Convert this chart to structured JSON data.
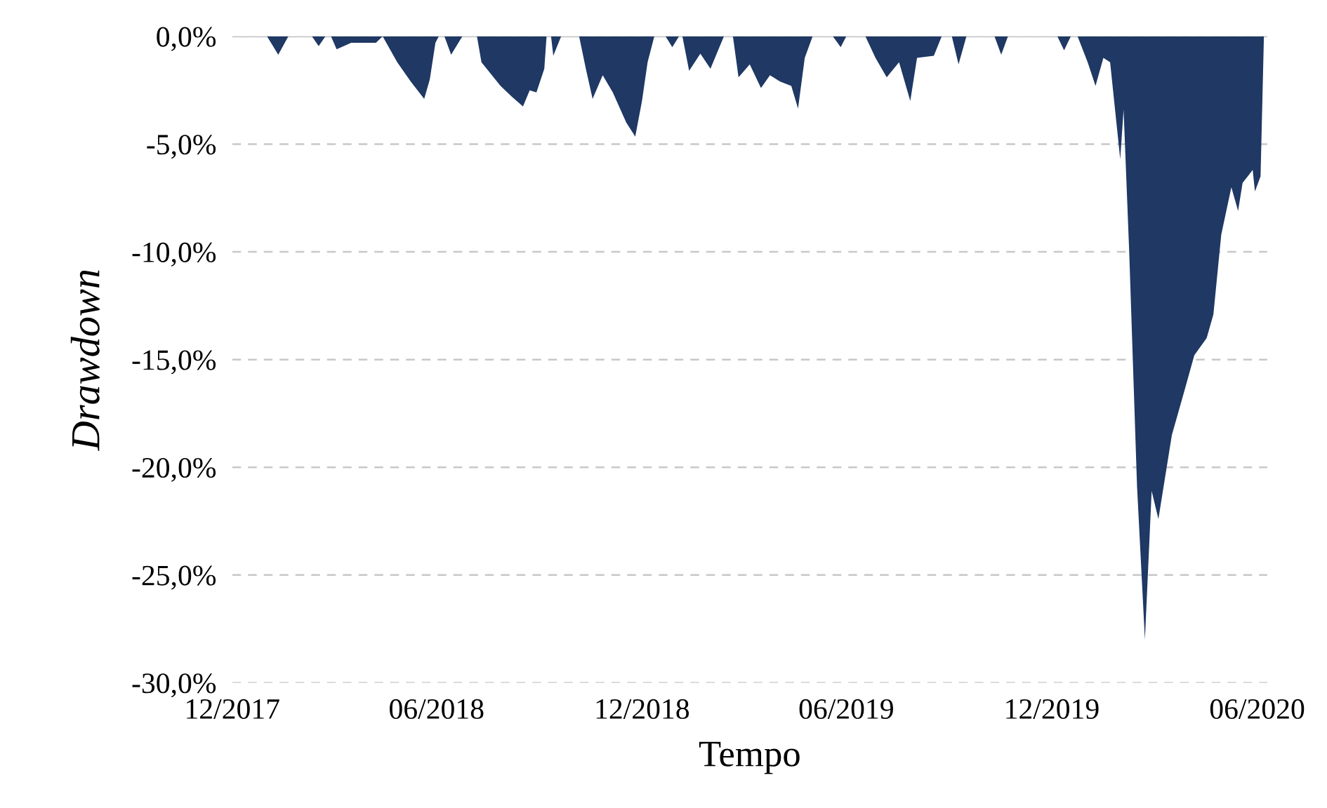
{
  "chart_data": {
    "type": "area",
    "xlabel": "Tempo",
    "ylabel": "Drawdown",
    "x": [
      "2017-12-01",
      "2018-01-01",
      "2018-01-11",
      "2018-01-20",
      "2018-02-10",
      "2018-02-16",
      "2018-02-22",
      "2018-02-27",
      "2018-03-04",
      "2018-03-17",
      "2018-04-08",
      "2018-04-14",
      "2018-04-27",
      "2018-05-09",
      "2018-05-21",
      "2018-05-26",
      "2018-05-31",
      "2018-06-03",
      "2018-06-08",
      "2018-06-14",
      "2018-06-24",
      "2018-07-07",
      "2018-07-11",
      "2018-07-28",
      "2018-08-07",
      "2018-08-17",
      "2018-08-23",
      "2018-08-29",
      "2018-09-05",
      "2018-09-07",
      "2018-09-11",
      "2018-09-13",
      "2018-09-20",
      "2018-10-06",
      "2018-10-12",
      "2018-10-18",
      "2018-10-27",
      "2018-11-05",
      "2018-11-17",
      "2018-11-25",
      "2018-12-01",
      "2018-12-06",
      "2018-12-12",
      "2018-12-22",
      "2018-12-28",
      "2019-01-03",
      "2019-01-06",
      "2019-01-12",
      "2019-01-22",
      "2019-01-31",
      "2019-02-12",
      "2019-02-20",
      "2019-02-25",
      "2019-03-07",
      "2019-03-17",
      "2019-03-25",
      "2019-04-03",
      "2019-04-13",
      "2019-04-19",
      "2019-04-25",
      "2019-05-02",
      "2019-05-20",
      "2019-05-27",
      "2019-06-01",
      "2019-06-18",
      "2019-06-27",
      "2019-07-07",
      "2019-07-18",
      "2019-07-28",
      "2019-08-03",
      "2019-08-18",
      "2019-08-25",
      "2019-09-03",
      "2019-09-09",
      "2019-09-16",
      "2019-10-11",
      "2019-10-17",
      "2019-10-23",
      "2019-12-06",
      "2019-12-12",
      "2019-12-18",
      "2019-12-24",
      "2020-01-02",
      "2020-01-09",
      "2020-01-16",
      "2020-01-22",
      "2020-01-31",
      "2020-02-03",
      "2020-02-08",
      "2020-02-15",
      "2020-02-22",
      "2020-02-28",
      "2020-03-05",
      "2020-03-17",
      "2020-03-29",
      "2020-04-06",
      "2020-04-17",
      "2020-04-23",
      "2020-04-30",
      "2020-05-09",
      "2020-05-15",
      "2020-05-19",
      "2020-05-28",
      "2020-05-30",
      "2020-06-04",
      "2020-06-07"
    ],
    "series": [
      {
        "color": "#1f3864",
        "values": [
          0,
          0,
          -0.85,
          0,
          0,
          -0.45,
          0,
          0,
          -0.6,
          -0.3,
          -0.3,
          0,
          -1.2,
          -2.1,
          -2.9,
          -2.0,
          -0.3,
          0,
          0,
          -0.85,
          0,
          0,
          -1.2,
          -2.3,
          -2.8,
          -3.25,
          -2.5,
          -2.6,
          -1.5,
          0,
          0,
          -0.9,
          0,
          0,
          -1.5,
          -2.9,
          -1.8,
          -2.6,
          -4.0,
          -4.65,
          -3.0,
          -1.2,
          0,
          0,
          -0.5,
          0,
          0,
          -1.6,
          -0.8,
          -1.5,
          0,
          0,
          -1.9,
          -1.3,
          -2.4,
          -1.8,
          -2.1,
          -2.3,
          -3.35,
          -1.0,
          0,
          0,
          -0.5,
          0,
          0,
          -1.0,
          -1.9,
          -1.2,
          -3.0,
          -1.0,
          -0.9,
          0,
          0,
          -1.3,
          0,
          0,
          -0.85,
          0,
          0,
          -0.65,
          0,
          0,
          -1.2,
          -2.3,
          -1.0,
          -1.2,
          -5.7,
          -3.4,
          -10,
          -20.9,
          -28.0,
          -21.1,
          -22.4,
          -18.5,
          -16.3,
          -14.8,
          -14.0,
          -12.9,
          -9.2,
          -7.0,
          -8.1,
          -6.8,
          -6.2,
          -7.2,
          -6.5,
          0
        ]
      }
    ],
    "xlim": [
      "2017-12-01",
      "2020-06-10"
    ],
    "xticks": [
      {
        "value": "2017-12-01",
        "label": "12/2017"
      },
      {
        "value": "2018-06-01",
        "label": "06/2018"
      },
      {
        "value": "2018-12-01",
        "label": "12/2018"
      },
      {
        "value": "2019-06-01",
        "label": "06/2019"
      },
      {
        "value": "2019-12-01",
        "label": "12/2019"
      },
      {
        "value": "2020-06-01",
        "label": "06/2020"
      }
    ],
    "ylim": [
      -30,
      0
    ],
    "yticks": [
      {
        "value": 0,
        "label": "0,0%"
      },
      {
        "value": -5,
        "label": "-5,0%"
      },
      {
        "value": -10,
        "label": "-10,0%"
      },
      {
        "value": -15,
        "label": "-15,0%"
      },
      {
        "value": -20,
        "label": "-20,0%"
      },
      {
        "value": -25,
        "label": "-25,0%"
      },
      {
        "value": -30,
        "label": "-30,0%"
      }
    ],
    "grid": "y"
  }
}
